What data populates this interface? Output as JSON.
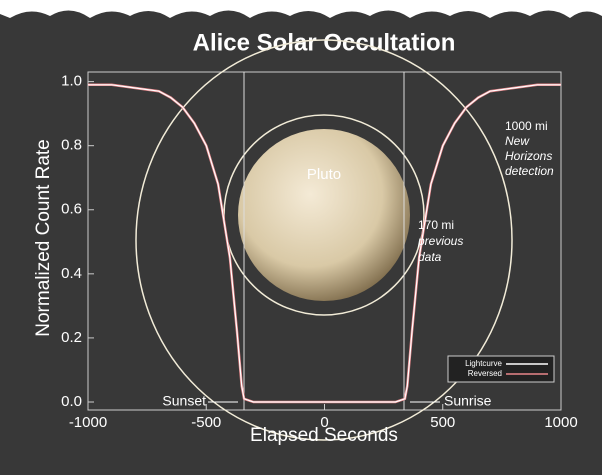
{
  "chart_data": {
    "type": "line",
    "title": "Alice Solar Occultation",
    "xlabel": "Elapsed Seconds",
    "ylabel": "Normalized Count Rate",
    "x": [
      -1000,
      -900,
      -800,
      -700,
      -650,
      -600,
      -550,
      -500,
      -450,
      -400,
      -370,
      -350,
      -340,
      -300,
      -200,
      -100,
      0,
      100,
      200,
      300,
      340,
      350,
      370,
      400,
      450,
      500,
      550,
      600,
      650,
      700,
      800,
      900,
      1000
    ],
    "series": [
      {
        "name": "Lightcurve",
        "color": "#ffffff",
        "values": [
          0.99,
          0.99,
          0.98,
          0.97,
          0.95,
          0.92,
          0.87,
          0.8,
          0.68,
          0.45,
          0.22,
          0.05,
          0.01,
          0.0,
          0.0,
          0.0,
          0.0,
          0.0,
          0.0,
          0.0,
          0.01,
          0.05,
          0.22,
          0.45,
          0.68,
          0.8,
          0.87,
          0.92,
          0.95,
          0.97,
          0.98,
          0.99,
          0.99
        ]
      },
      {
        "name": "Reversed",
        "color": "#e8868a",
        "values": [
          0.99,
          0.99,
          0.98,
          0.97,
          0.95,
          0.92,
          0.87,
          0.8,
          0.68,
          0.45,
          0.22,
          0.05,
          0.01,
          0.0,
          0.0,
          0.0,
          0.0,
          0.0,
          0.0,
          0.0,
          0.01,
          0.05,
          0.22,
          0.45,
          0.68,
          0.8,
          0.87,
          0.92,
          0.95,
          0.97,
          0.98,
          0.99,
          0.99
        ]
      }
    ],
    "xlim": [
      -1000,
      1000
    ],
    "xticks": [
      -1000,
      -500,
      0,
      500,
      1000
    ],
    "ylim": [
      -0.025,
      1.03
    ],
    "yticks": [
      {
        "value": 0.0,
        "label": "0.0"
      },
      0.2,
      0.4,
      0.6,
      0.8,
      {
        "value": 1.0,
        "label": "1.0"
      }
    ],
    "legend": "lower right",
    "annotations": [
      "Pluto",
      "1000 mi",
      "New",
      "Horizons",
      "detection",
      "170 mi",
      "previous",
      "data",
      "Sunset",
      "Sunrise"
    ]
  }
}
